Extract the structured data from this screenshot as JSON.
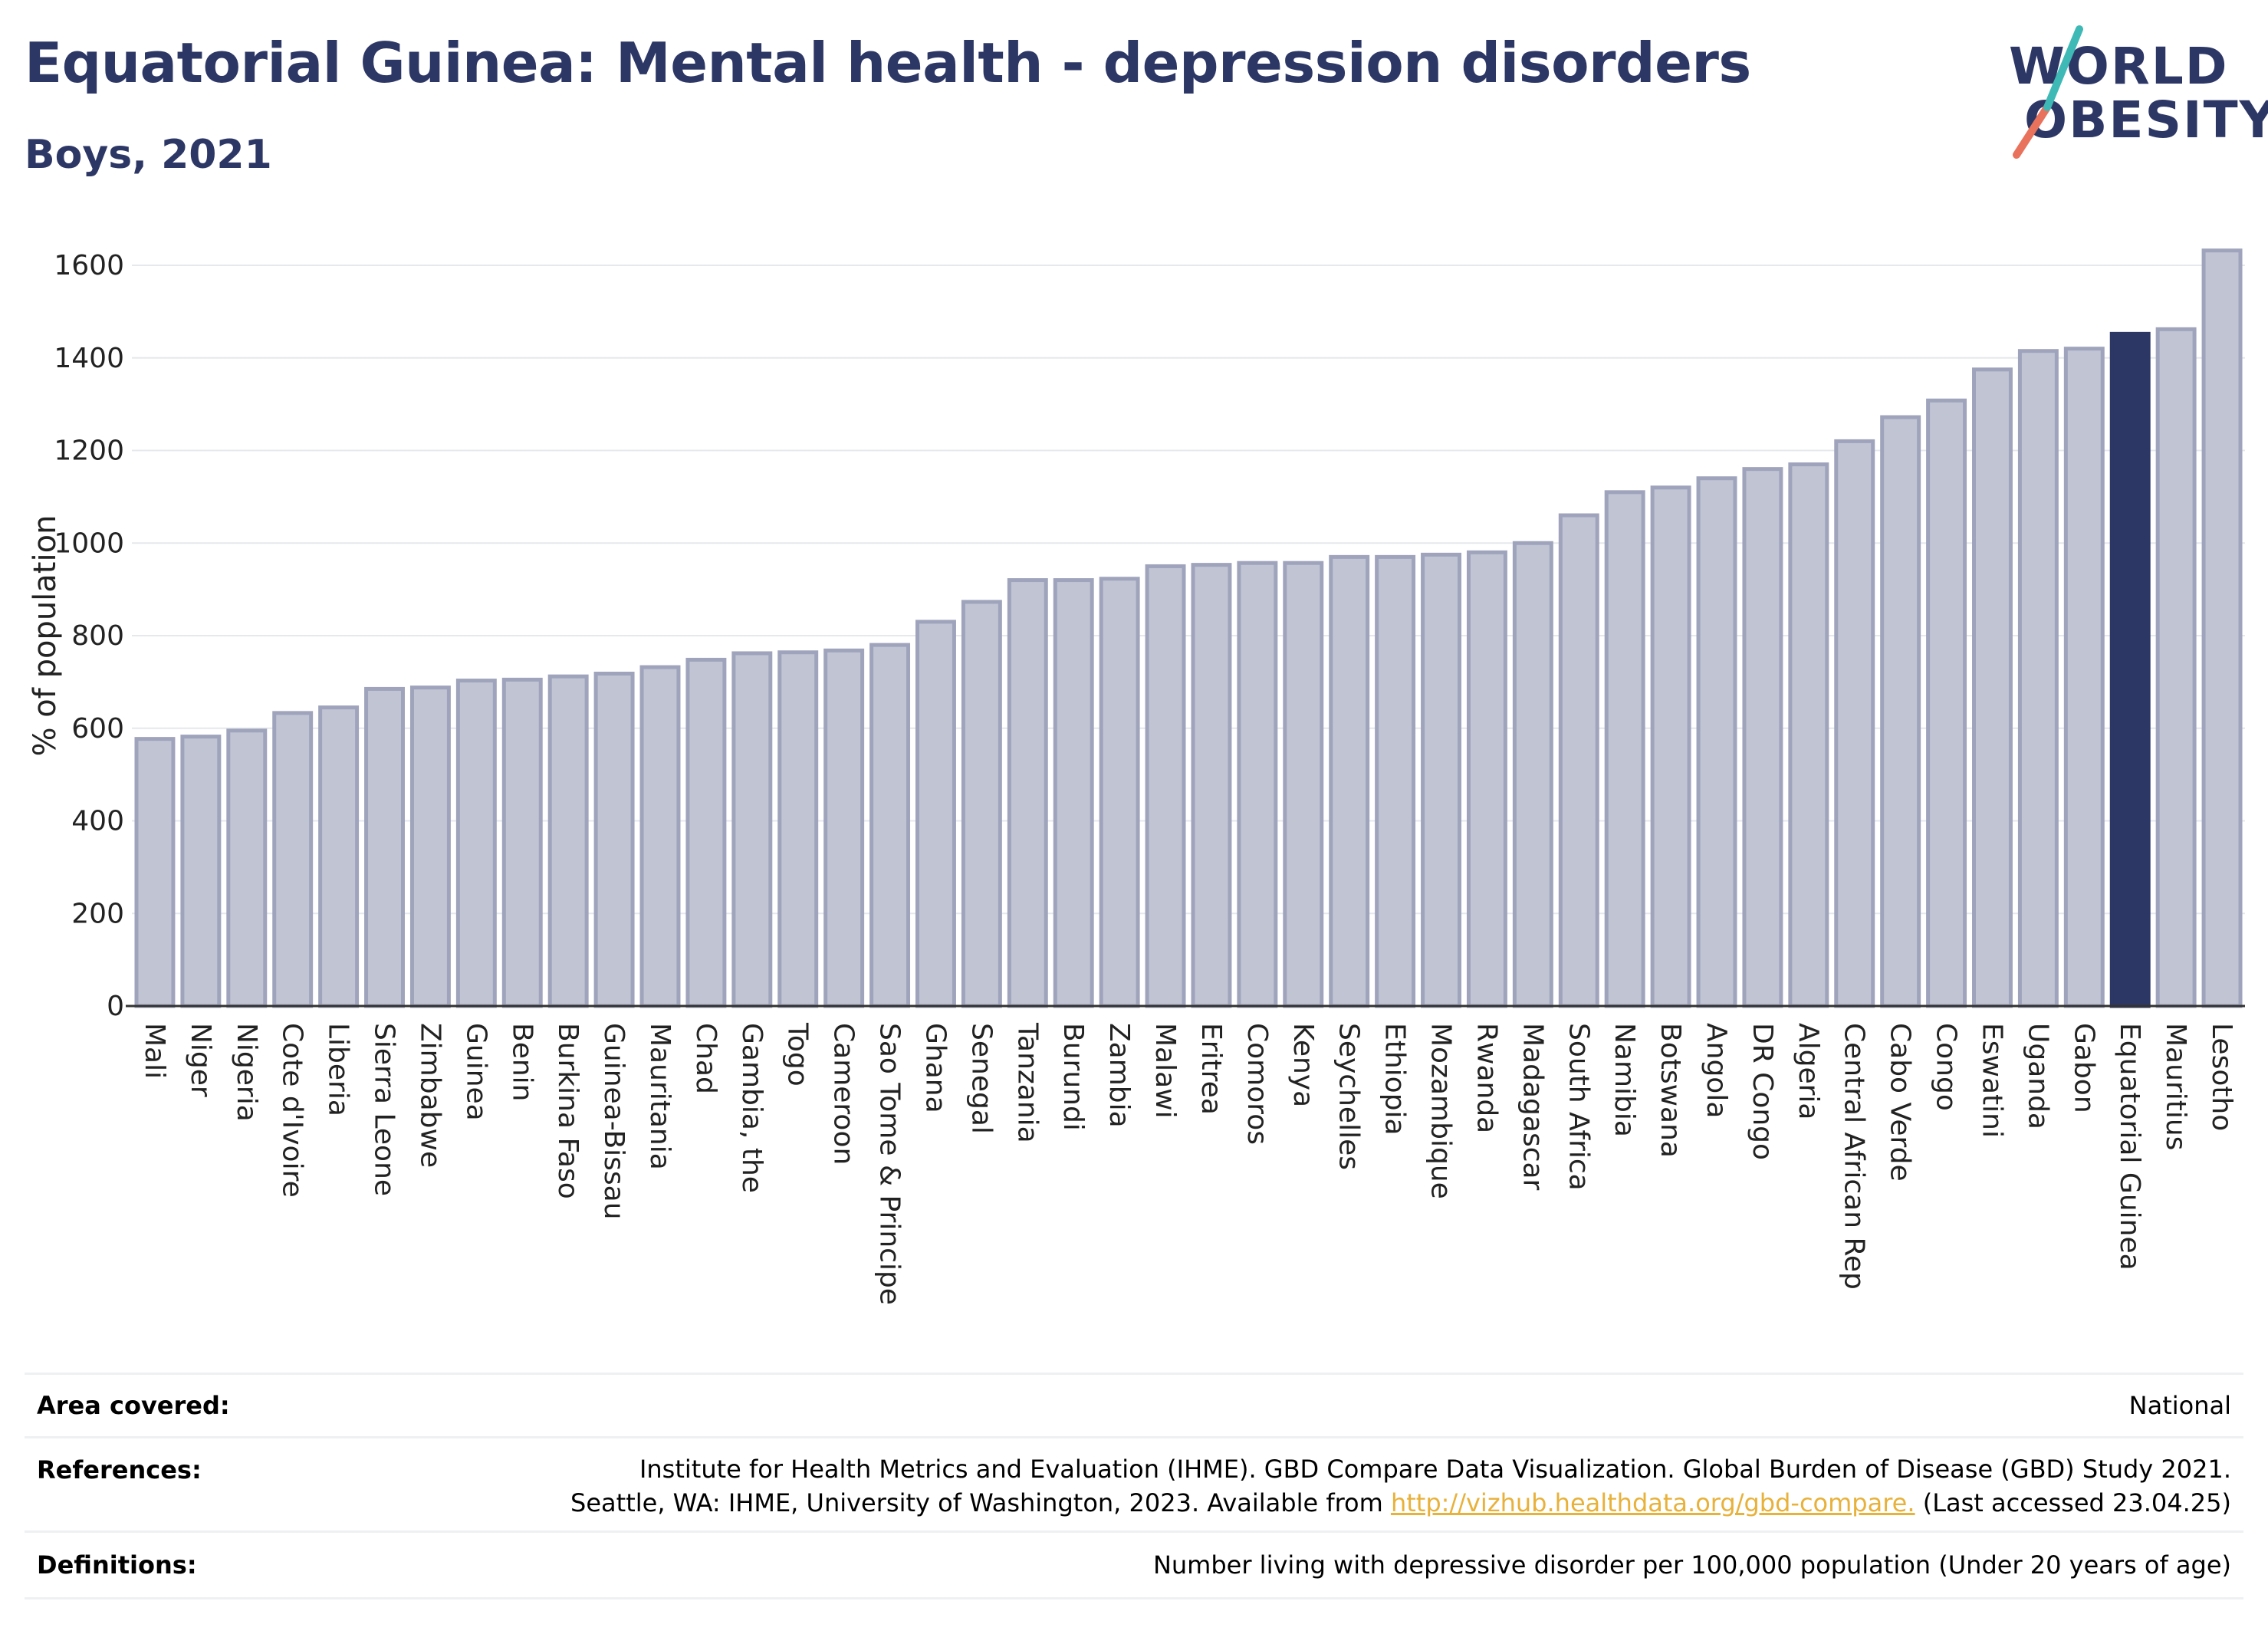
{
  "header": {
    "title": "Equatorial Guinea: Mental health - depression disorders",
    "subtitle": "Boys, 2021"
  },
  "logo": {
    "line1": "WORLD",
    "line2": "OBESITY"
  },
  "colors": {
    "highlight": "#2d3765",
    "bar_fill": "#c0c4d3",
    "bar_stroke": "#9fa4bc",
    "link": "#e8b13a"
  },
  "chart_data": {
    "type": "bar",
    "ylabel": "% of population",
    "ylim": [
      0,
      1650
    ],
    "yticks": [
      0,
      200,
      400,
      600,
      800,
      1000,
      1200,
      1400,
      1600
    ],
    "grid": true,
    "highlight": "Equatorial Guinea",
    "categories": [
      "Mali",
      "Niger",
      "Nigeria",
      "Cote d'Ivoire",
      "Liberia",
      "Sierra Leone",
      "Zimbabwe",
      "Guinea",
      "Benin",
      "Burkina Faso",
      "Guinea-Bissau",
      "Mauritania",
      "Chad",
      "Gambia, the",
      "Togo",
      "Cameroon",
      "Sao Tome & Principe",
      "Ghana",
      "Senegal",
      "Tanzania",
      "Burundi",
      "Zambia",
      "Malawi",
      "Eritrea",
      "Comoros",
      "Kenya",
      "Seychelles",
      "Ethiopia",
      "Mozambique",
      "Rwanda",
      "Madagascar",
      "South Africa",
      "Namibia",
      "Botswana",
      "Angola",
      "DR Congo",
      "Algeria",
      "Central African Rep",
      "Cabo Verde",
      "Congo",
      "Eswatini",
      "Uganda",
      "Gabon",
      "Equatorial Guinea",
      "Mauritius",
      "Lesotho"
    ],
    "values": [
      577,
      582,
      595,
      633,
      645,
      685,
      688,
      703,
      705,
      712,
      718,
      732,
      748,
      762,
      764,
      768,
      780,
      830,
      873,
      920,
      920,
      923,
      950,
      953,
      957,
      957,
      970,
      970,
      975,
      980,
      1000,
      1060,
      1110,
      1120,
      1140,
      1160,
      1170,
      1220,
      1272,
      1308,
      1375,
      1415,
      1420,
      1452,
      1462,
      1632
    ]
  },
  "footer": {
    "area_label": "Area covered:",
    "area_value": "National",
    "references_label": "References:",
    "references_line1": "Institute for Health Metrics and Evaluation (IHME). GBD Compare Data Visualization. Global Burden of Disease (GBD) Study 2021.",
    "references_line2_pre": "Seattle, WA: IHME, University of Washington, 2023. Available from ",
    "references_link": "http://vizhub.healthdata.org/gbd-compare.",
    "references_line2_post": " (Last accessed 23.04.25)",
    "definitions_label": "Definitions:",
    "definitions_value": "Number living with depressive disorder per 100,000 population (Under 20 years of age)"
  }
}
